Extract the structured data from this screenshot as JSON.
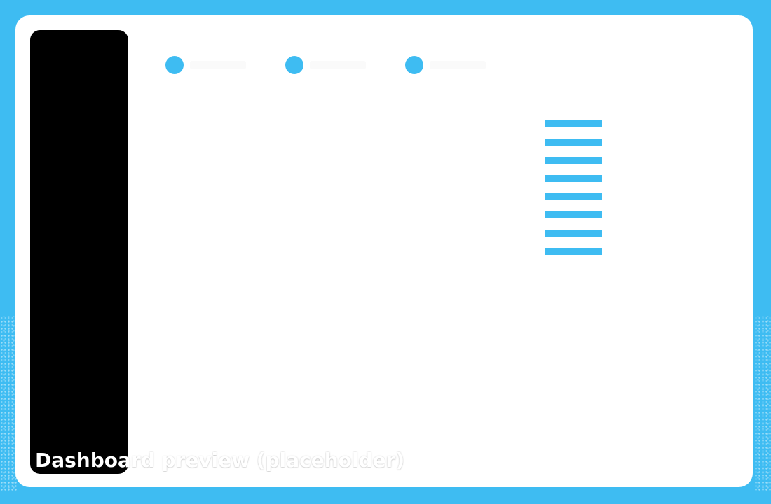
{
  "colors": {
    "accent": "#3ebcf2",
    "frame_background": "#3ebcf2",
    "card_background": "#ffffff",
    "sidebar_background": "#000000",
    "nav_label_placeholder": "#fafafa",
    "caption_text": "#ffffff"
  },
  "topnav": {
    "item_count": 3,
    "items": [
      {
        "label": ""
      },
      {
        "label": ""
      },
      {
        "label": ""
      }
    ]
  },
  "content": {
    "bar_list": {
      "count": 8,
      "color": "#3ebcf2"
    }
  },
  "caption": {
    "text": "Dashboard preview (placeholder)"
  }
}
